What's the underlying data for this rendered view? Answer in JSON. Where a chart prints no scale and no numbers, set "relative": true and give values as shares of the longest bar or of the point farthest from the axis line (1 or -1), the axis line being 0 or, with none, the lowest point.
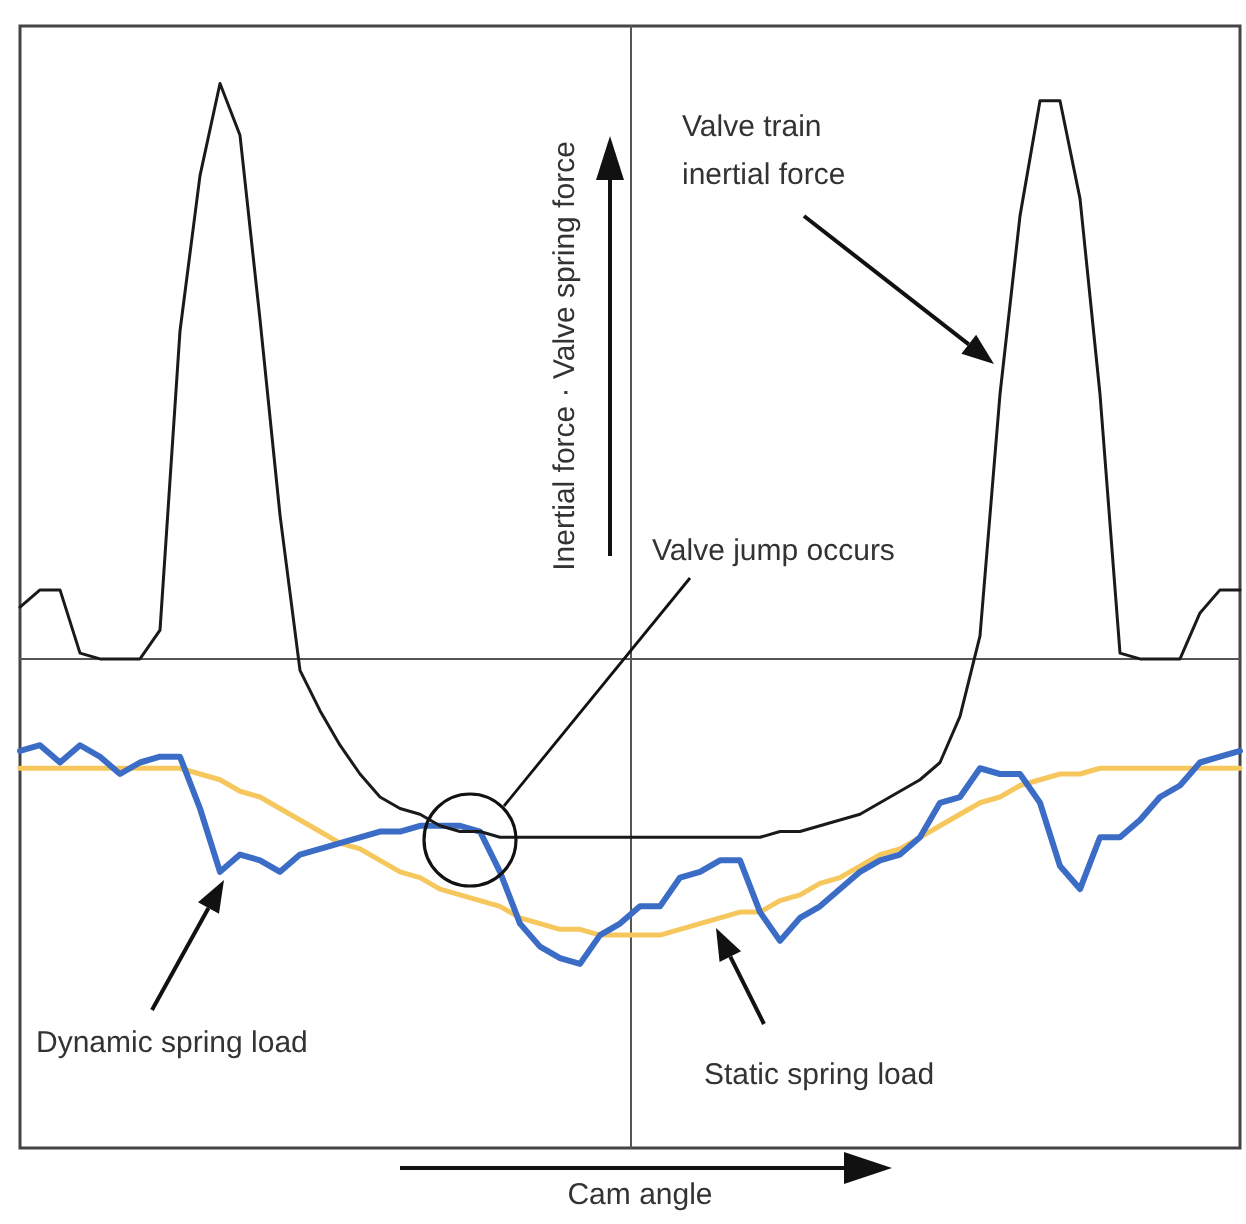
{
  "chart_data": {
    "type": "line",
    "relative": true,
    "ylabel": "Inertial force · Valve spring force",
    "annotations": [
      "Valve train inertial force",
      "Valve jump occurs",
      "Dynamic spring load",
      "Static spring load",
      "Cam angle"
    ],
    "categories": [
      null,
      null,
      null,
      null,
      null,
      null,
      null,
      null,
      null,
      null,
      null,
      null,
      null,
      null,
      null,
      null,
      null,
      null,
      null,
      null,
      null,
      null,
      null,
      null,
      null,
      null,
      null,
      null,
      null,
      null,
      null,
      null,
      null,
      null,
      null,
      null,
      null,
      null,
      null,
      null,
      null,
      null,
      null,
      null,
      null,
      null,
      null,
      null,
      null,
      null,
      null,
      null,
      null,
      null,
      null,
      null,
      null,
      null,
      null,
      null,
      null,
      null
    ],
    "marker": "none",
    "series": [
      {
        "color": "#f6c75c",
        "values": [
          -0.19,
          -0.19,
          -0.19,
          -0.19,
          -0.19,
          -0.19,
          -0.19,
          -0.19,
          -0.19,
          -0.2,
          -0.21,
          -0.23,
          -0.24,
          -0.26,
          -0.28,
          -0.3,
          -0.32,
          -0.33,
          -0.35,
          -0.37,
          -0.38,
          -0.4,
          -0.41,
          -0.42,
          -0.43,
          -0.45,
          -0.46,
          -0.47,
          -0.47,
          -0.48,
          -0.48,
          -0.48,
          -0.48,
          -0.47,
          -0.46,
          -0.45,
          -0.44,
          -0.44,
          -0.42,
          -0.41,
          -0.39,
          -0.38,
          -0.36,
          -0.34,
          -0.33,
          -0.31,
          -0.29,
          -0.27,
          -0.25,
          -0.24,
          -0.22,
          -0.21,
          -0.2,
          -0.2,
          -0.19,
          -0.19,
          -0.19,
          -0.19,
          -0.19,
          -0.19,
          -0.19,
          -0.19
        ]
      },
      {
        "color": "#3b6cc6",
        "values": [
          -0.16,
          -0.15,
          -0.18,
          -0.15,
          -0.17,
          -0.2,
          -0.18,
          -0.17,
          -0.17,
          -0.26,
          -0.37,
          -0.34,
          -0.35,
          -0.37,
          -0.34,
          -0.33,
          -0.32,
          -0.31,
          -0.3,
          -0.3,
          -0.29,
          -0.29,
          -0.29,
          -0.3,
          -0.37,
          -0.46,
          -0.5,
          -0.52,
          -0.53,
          -0.48,
          -0.46,
          -0.43,
          -0.43,
          -0.38,
          -0.37,
          -0.35,
          -0.35,
          -0.44,
          -0.49,
          -0.45,
          -0.43,
          -0.4,
          -0.37,
          -0.35,
          -0.34,
          -0.31,
          -0.25,
          -0.24,
          -0.19,
          -0.2,
          -0.2,
          -0.25,
          -0.36,
          -0.4,
          -0.31,
          -0.31,
          -0.28,
          -0.24,
          -0.22,
          -0.18,
          -0.17,
          -0.16
        ]
      },
      {
        "color": "#1a1a1a",
        "values": [
          0.09,
          0.12,
          0.12,
          0.01,
          0,
          0,
          0,
          0.05,
          0.57,
          0.84,
          1,
          0.91,
          0.59,
          0.25,
          -0.02,
          -0.09,
          -0.15,
          -0.2,
          -0.24,
          -0.26,
          -0.27,
          -0.29,
          -0.3,
          -0.3,
          -0.31,
          -0.31,
          -0.31,
          -0.31,
          -0.31,
          -0.31,
          -0.31,
          -0.31,
          -0.31,
          -0.31,
          -0.31,
          -0.31,
          -0.31,
          -0.31,
          -0.3,
          -0.3,
          -0.29,
          -0.28,
          -0.27,
          -0.25,
          -0.23,
          -0.21,
          -0.18,
          -0.1,
          0.04,
          0.46,
          0.77,
          0.97,
          0.97,
          0.8,
          0.46,
          0.01,
          0,
          0,
          0,
          0.08,
          0.12,
          0.12
        ]
      }
    ]
  }
}
